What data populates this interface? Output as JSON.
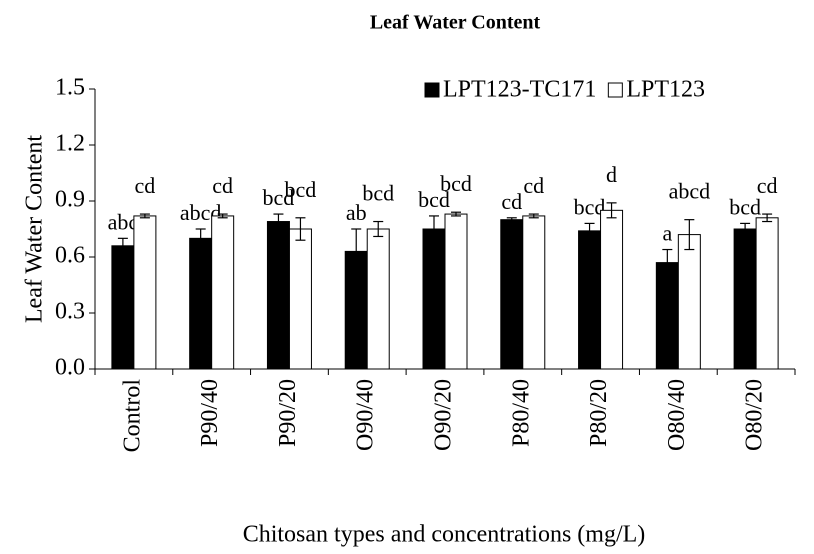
{
  "chart_data": {
    "type": "bar",
    "title": "Leaf Water Content",
    "xlabel": "Chitosan types and concentrations (mg/L)",
    "ylabel": "Leaf Water Content",
    "categories": [
      "Control",
      "P90/40",
      "P90/20",
      "O90/40",
      "O90/20",
      "P80/40",
      "P80/20",
      "O80/40",
      "O80/20"
    ],
    "series": [
      {
        "name": "LPT123-TC171",
        "color": "#000000",
        "values": [
          0.66,
          0.7,
          0.79,
          0.63,
          0.75,
          0.8,
          0.74,
          0.57,
          0.75
        ],
        "errors": [
          0.04,
          0.05,
          0.04,
          0.12,
          0.07,
          0.01,
          0.04,
          0.07,
          0.03
        ],
        "annotations": [
          "abc",
          "abcd",
          "bcd",
          "ab",
          "bcd",
          "cd",
          "bcd",
          "a",
          "bcd"
        ]
      },
      {
        "name": "LPT123",
        "color": "#ffffff",
        "values": [
          0.82,
          0.82,
          0.75,
          0.75,
          0.83,
          0.82,
          0.85,
          0.72,
          0.81
        ],
        "errors": [
          0.01,
          0.01,
          0.06,
          0.04,
          0.01,
          0.01,
          0.04,
          0.08,
          0.02
        ],
        "annotations": [
          "cd",
          "cd",
          "bcd",
          "bcd",
          "bcd",
          "cd",
          "d",
          "abcd",
          "cd"
        ]
      }
    ],
    "ylim": [
      0,
      1.5
    ],
    "yticks": [
      {
        "value": 0,
        "label": "0.0"
      },
      {
        "value": 0.3,
        "label": "0.3"
      },
      {
        "value": 0.6,
        "label": "0.6"
      },
      {
        "value": 0.9,
        "label": "0.9"
      },
      {
        "value": 1.2,
        "label": "1.2"
      },
      {
        "value": 1.5,
        "label": "1.5"
      }
    ],
    "legend": "top-right"
  }
}
